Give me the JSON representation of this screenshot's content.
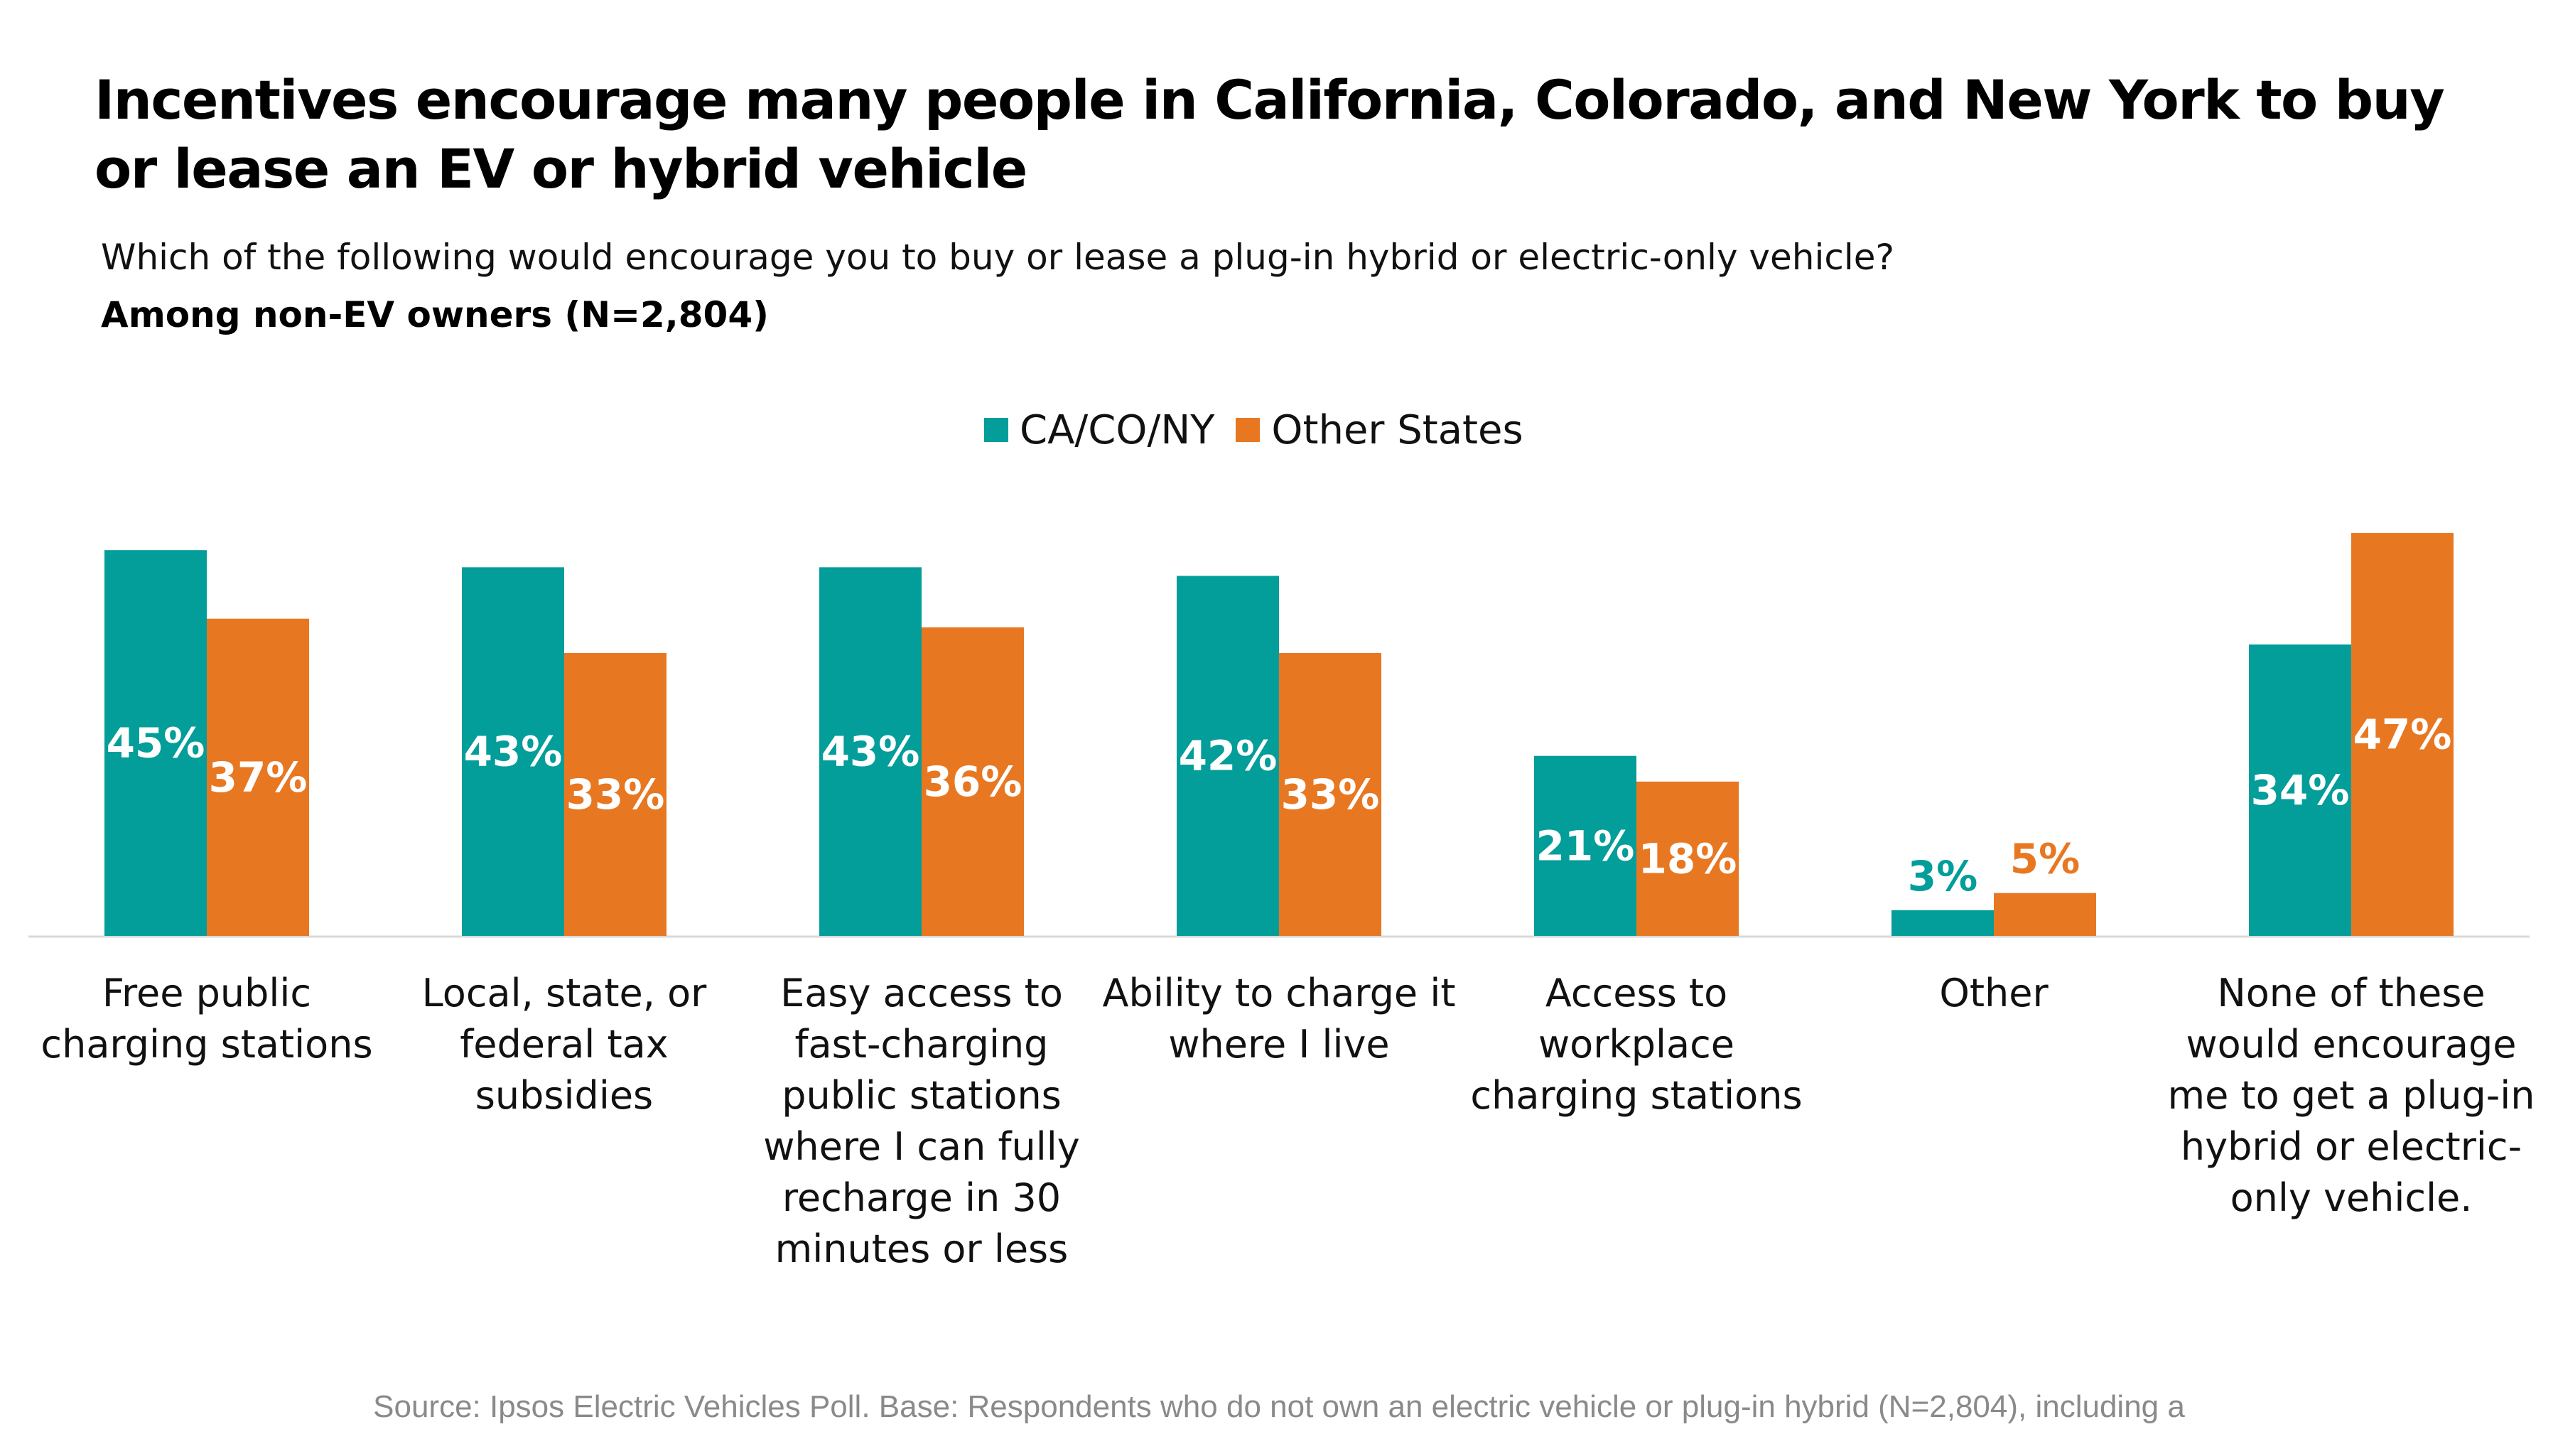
{
  "title": "Incentives encourage many people in California, Colorado, and New York to buy or lease an EV or hybrid vehicle",
  "subtitle": "Which of the following would encourage you to buy or lease a plug-in hybrid or electric-only vehicle?",
  "subtitle2": "Among non-EV owners (N=2,804)",
  "source": "Source: Ipsos Electric Vehicles Poll. Base: Respondents who do not own an electric vehicle or plug-in hybrid (N=2,804), including a",
  "colors": {
    "ca": "#039d9a",
    "other": "#e87722",
    "axis": "#d9d9d9",
    "category_text": "#111111"
  },
  "chart_data": {
    "type": "bar",
    "categories": [
      [
        "Free public",
        "charging stations"
      ],
      [
        "Local, state, or",
        "federal tax",
        "subsidies"
      ],
      [
        "Easy access to",
        "fast-charging",
        "public stations",
        "where I can fully",
        "recharge in 30",
        "minutes or less"
      ],
      [
        "Ability to charge it",
        "where I live"
      ],
      [
        "Access to",
        "workplace",
        "charging stations"
      ],
      [
        "Other"
      ],
      [
        "None of these",
        "would encourage",
        "me to get a plug-in",
        "hybrid or electric-",
        "only vehicle."
      ]
    ],
    "series": [
      {
        "name": "CA/CO/NY",
        "values": [
          45,
          43,
          43,
          42,
          21,
          3,
          34
        ],
        "labels": [
          "45%",
          "43%",
          "43%",
          "42%",
          "21%",
          "3%",
          "34%"
        ]
      },
      {
        "name": "Other States",
        "values": [
          37,
          33,
          36,
          33,
          18,
          5,
          47
        ],
        "labels": [
          "37%",
          "33%",
          "36%",
          "33%",
          "18%",
          "5%",
          "47%"
        ]
      }
    ],
    "ylim": [
      0,
      48
    ],
    "grid": false,
    "legend_position": "top-center"
  }
}
